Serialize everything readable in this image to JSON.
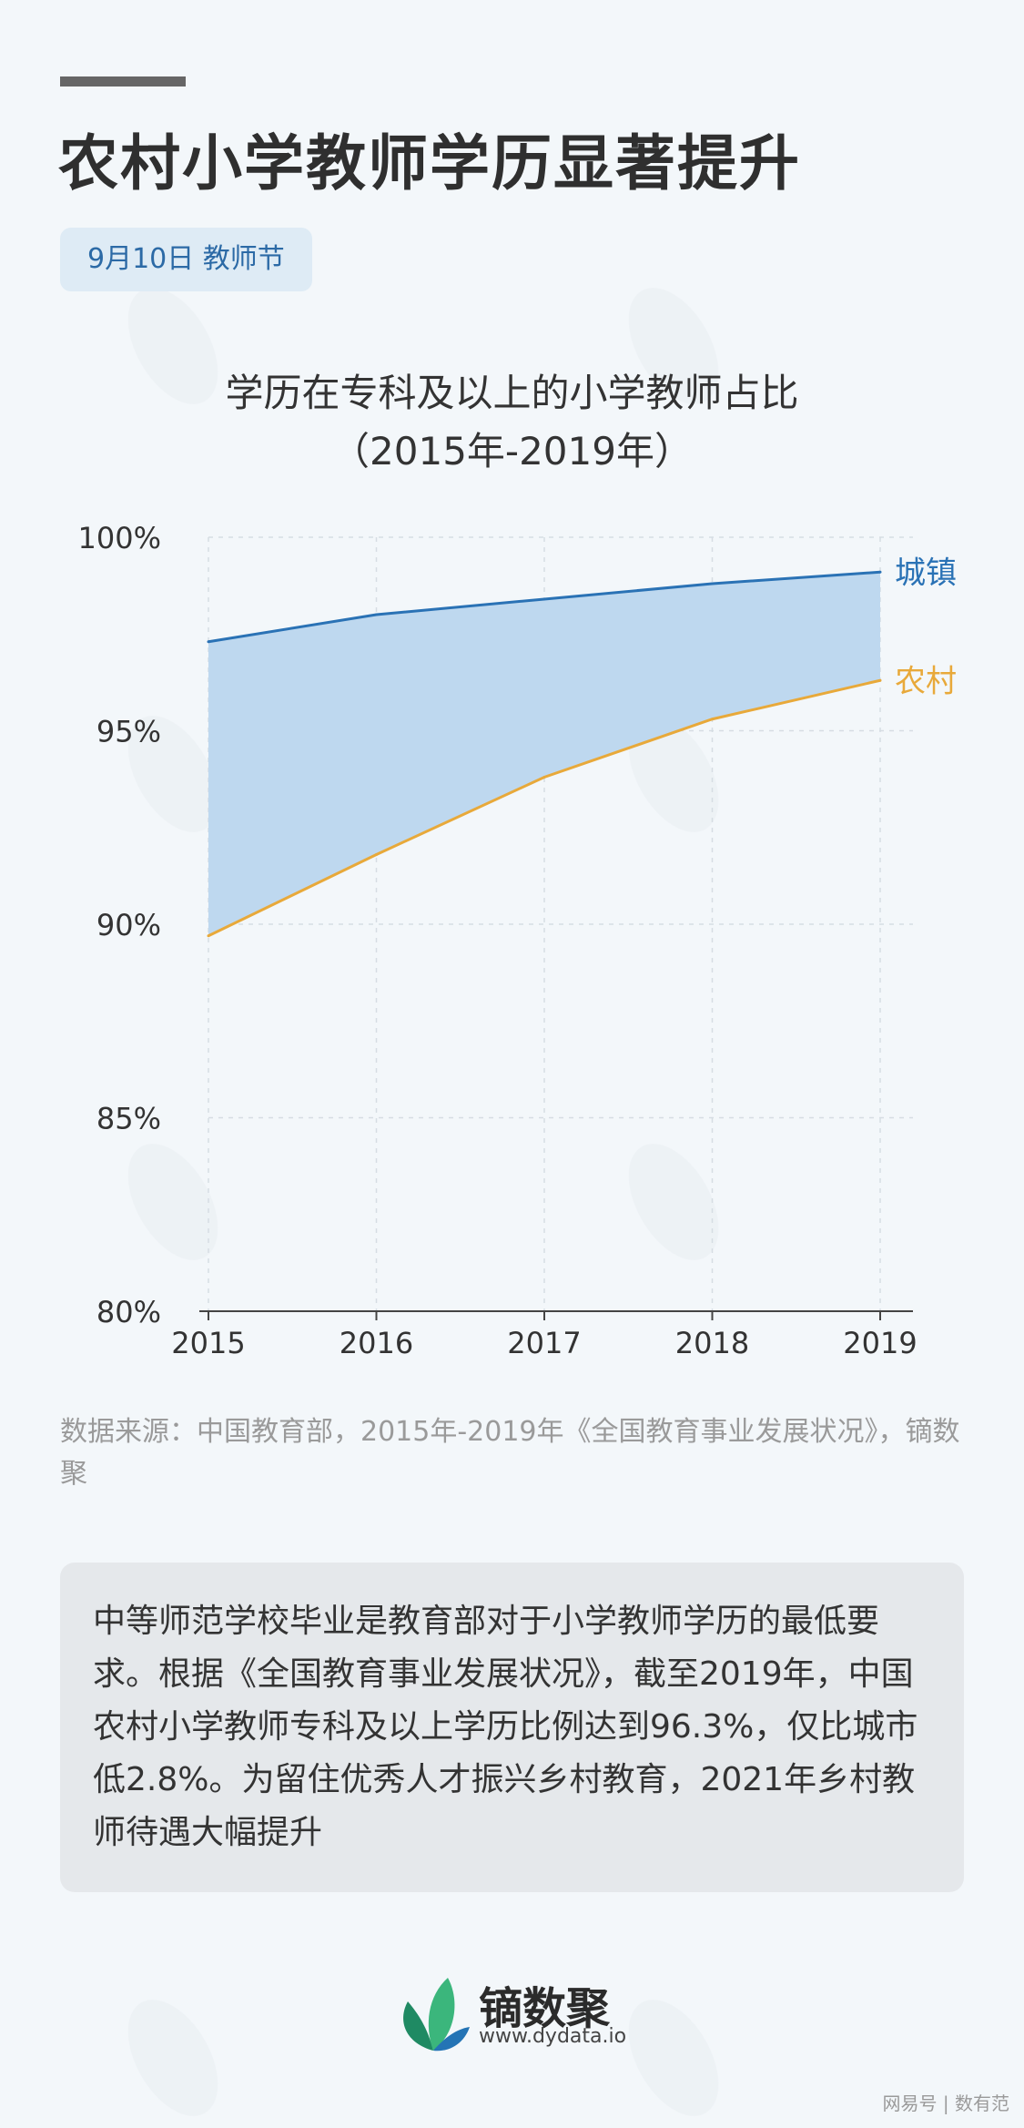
{
  "header": {
    "title": "农村小学教师学历显著提升",
    "badge": "9月10日 教师节"
  },
  "chart_data": {
    "type": "area",
    "title": "学历在专科及以上的小学教师占比",
    "subtitle": "（2015年-2019年）",
    "x": [
      "2015",
      "2016",
      "2017",
      "2018",
      "2019"
    ],
    "series": [
      {
        "name": "城镇",
        "values": [
          97.3,
          98.0,
          98.4,
          98.8,
          99.1
        ],
        "color": "#2a72b5"
      },
      {
        "name": "农村",
        "values": [
          89.7,
          91.8,
          93.8,
          95.3,
          96.3
        ],
        "color": "#e8a93a"
      }
    ],
    "fill_between_color": "#bed8ef",
    "ylim": [
      80,
      100
    ],
    "yticks": [
      80,
      85,
      90,
      95,
      100
    ],
    "ytick_labels": [
      "80%",
      "85%",
      "90%",
      "95%",
      "100%"
    ],
    "grid": true,
    "legend": "inline-right"
  },
  "source": "数据来源：中国教育部，2015年-2019年《全国教育事业发展状况》，镝数聚",
  "note": "中等师范学校毕业是教育部对于小学教师学历的最低要求。根据《全国教育事业发展状况》，截至2019年，中国农村小学教师专科及以上学历比例达到96.3%，仅比城市低2.8%。为留住优秀人才振兴乡村教育，2021年乡村教师待遇大幅提升",
  "footer": {
    "brand": "镝数聚",
    "url": "www.dydata.io",
    "corner": "网易号 | 数有范"
  }
}
